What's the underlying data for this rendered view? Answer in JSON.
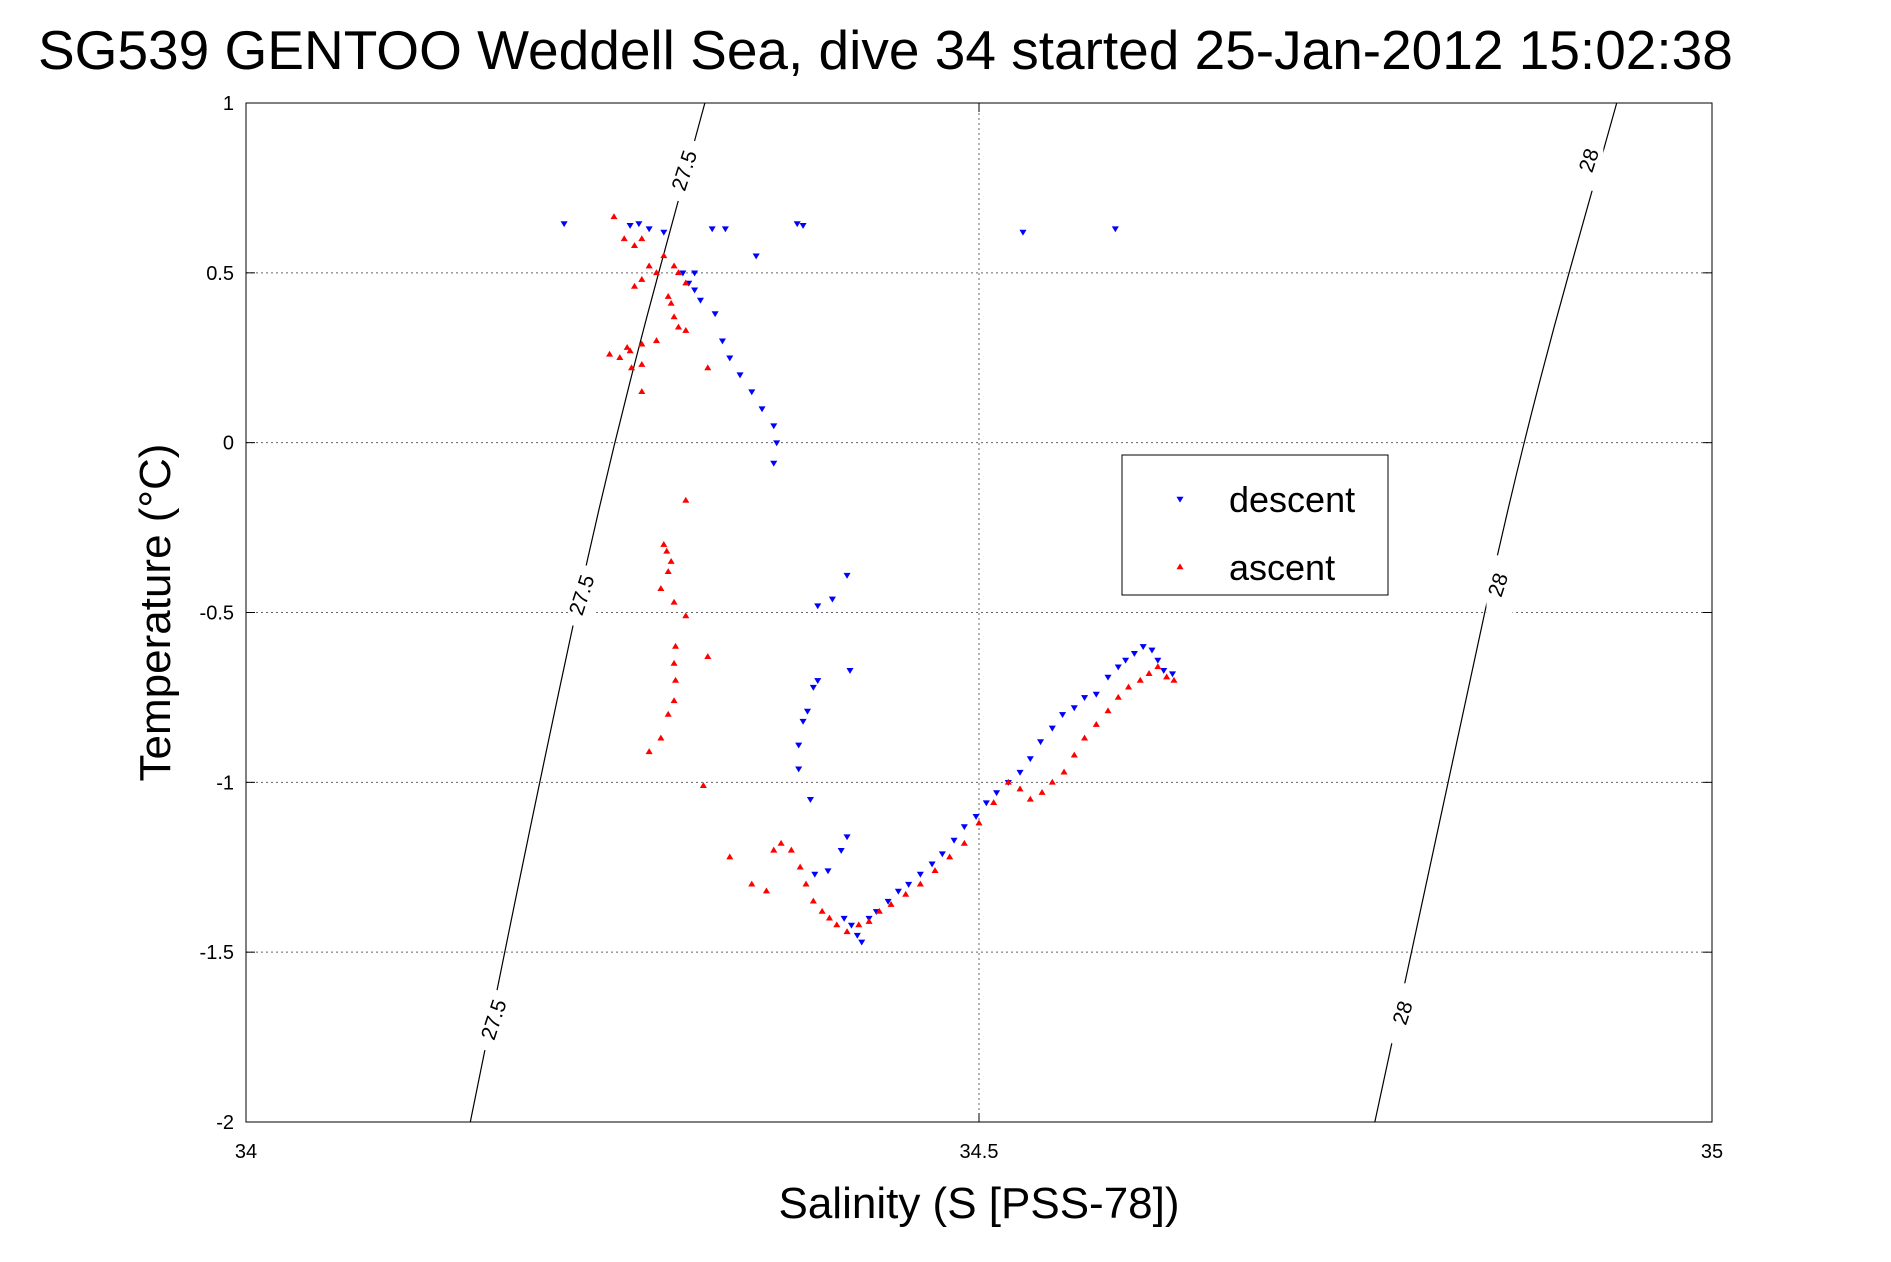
{
  "chart_data": {
    "type": "scatter",
    "title": "SG539 GENTOO Weddell Sea, dive 34 started 25-Jan-2012 15:02:38",
    "xlabel": "Salinity (S [PSS-78])",
    "ylabel": "Temperature (°C)",
    "xlim": [
      34,
      35
    ],
    "ylim": [
      -2,
      1
    ],
    "x_ticks": [
      "34",
      "34.5",
      "35"
    ],
    "y_ticks": [
      "1",
      "0.5",
      "0",
      "-0.5",
      "-1",
      "-1.5",
      "-2"
    ],
    "grid": true,
    "legend_position": "center-right",
    "series": [
      {
        "name": "descent",
        "color": "#0000ff",
        "marker": "triangle-down",
        "points": [
          [
            34.217,
            0.645
          ],
          [
            34.262,
            0.64
          ],
          [
            34.268,
            0.645
          ],
          [
            34.275,
            0.63
          ],
          [
            34.285,
            0.62
          ],
          [
            34.298,
            0.5
          ],
          [
            34.302,
            0.47
          ],
          [
            34.306,
            0.5
          ],
          [
            34.318,
            0.63
          ],
          [
            34.327,
            0.63
          ],
          [
            34.348,
            0.55
          ],
          [
            34.376,
            0.645
          ],
          [
            34.38,
            0.64
          ],
          [
            34.53,
            0.62
          ],
          [
            34.593,
            0.63
          ],
          [
            34.306,
            0.45
          ],
          [
            34.31,
            0.42
          ],
          [
            34.32,
            0.38
          ],
          [
            34.325,
            0.3
          ],
          [
            34.33,
            0.25
          ],
          [
            34.337,
            0.2
          ],
          [
            34.345,
            0.15
          ],
          [
            34.352,
            0.1
          ],
          [
            34.36,
            0.05
          ],
          [
            34.362,
            0.0
          ],
          [
            34.36,
            -0.06
          ],
          [
            34.41,
            -0.39
          ],
          [
            34.4,
            -0.46
          ],
          [
            34.39,
            -0.48
          ],
          [
            34.412,
            -0.67
          ],
          [
            34.39,
            -0.7
          ],
          [
            34.387,
            -0.72
          ],
          [
            34.383,
            -0.79
          ],
          [
            34.38,
            -0.82
          ],
          [
            34.377,
            -0.89
          ],
          [
            34.377,
            -0.96
          ],
          [
            34.385,
            -1.05
          ],
          [
            34.41,
            -1.16
          ],
          [
            34.406,
            -1.2
          ],
          [
            34.397,
            -1.26
          ],
          [
            34.388,
            -1.27
          ],
          [
            34.408,
            -1.4
          ],
          [
            34.413,
            -1.42
          ],
          [
            34.417,
            -1.45
          ],
          [
            34.42,
            -1.47
          ],
          [
            34.425,
            -1.4
          ],
          [
            34.43,
            -1.38
          ],
          [
            34.438,
            -1.35
          ],
          [
            34.445,
            -1.32
          ],
          [
            34.452,
            -1.3
          ],
          [
            34.46,
            -1.27
          ],
          [
            34.468,
            -1.24
          ],
          [
            34.475,
            -1.21
          ],
          [
            34.483,
            -1.17
          ],
          [
            34.49,
            -1.13
          ],
          [
            34.498,
            -1.1
          ],
          [
            34.505,
            -1.06
          ],
          [
            34.512,
            -1.03
          ],
          [
            34.52,
            -1.0
          ],
          [
            34.528,
            -0.97
          ],
          [
            34.535,
            -0.93
          ],
          [
            34.542,
            -0.88
          ],
          [
            34.55,
            -0.84
          ],
          [
            34.557,
            -0.8
          ],
          [
            34.565,
            -0.78
          ],
          [
            34.572,
            -0.75
          ],
          [
            34.58,
            -0.74
          ],
          [
            34.588,
            -0.69
          ],
          [
            34.595,
            -0.66
          ],
          [
            34.6,
            -0.64
          ],
          [
            34.606,
            -0.62
          ],
          [
            34.612,
            -0.6
          ],
          [
            34.618,
            -0.61
          ],
          [
            34.622,
            -0.64
          ],
          [
            34.626,
            -0.67
          ],
          [
            34.632,
            -0.68
          ]
        ]
      },
      {
        "name": "ascent",
        "color": "#ff0000",
        "marker": "triangle-up",
        "points": [
          [
            34.251,
            0.665
          ],
          [
            34.258,
            0.6
          ],
          [
            34.265,
            0.58
          ],
          [
            34.27,
            0.6
          ],
          [
            34.275,
            0.52
          ],
          [
            34.28,
            0.5
          ],
          [
            34.265,
            0.46
          ],
          [
            34.27,
            0.48
          ],
          [
            34.285,
            0.55
          ],
          [
            34.292,
            0.52
          ],
          [
            34.295,
            0.5
          ],
          [
            34.3,
            0.47
          ],
          [
            34.288,
            0.43
          ],
          [
            34.29,
            0.41
          ],
          [
            34.292,
            0.37
          ],
          [
            34.295,
            0.34
          ],
          [
            34.3,
            0.33
          ],
          [
            34.28,
            0.3
          ],
          [
            34.27,
            0.29
          ],
          [
            34.262,
            0.27
          ],
          [
            34.255,
            0.25
          ],
          [
            34.26,
            0.28
          ],
          [
            34.248,
            0.26
          ],
          [
            34.27,
            0.23
          ],
          [
            34.263,
            0.22
          ],
          [
            34.27,
            0.15
          ],
          [
            34.315,
            0.22
          ],
          [
            34.3,
            -0.17
          ],
          [
            34.285,
            -0.3
          ],
          [
            34.287,
            -0.32
          ],
          [
            34.29,
            -0.35
          ],
          [
            34.288,
            -0.38
          ],
          [
            34.283,
            -0.43
          ],
          [
            34.292,
            -0.47
          ],
          [
            34.3,
            -0.51
          ],
          [
            34.293,
            -0.6
          ],
          [
            34.292,
            -0.65
          ],
          [
            34.293,
            -0.7
          ],
          [
            34.292,
            -0.76
          ],
          [
            34.288,
            -0.8
          ],
          [
            34.283,
            -0.87
          ],
          [
            34.275,
            -0.91
          ],
          [
            34.315,
            -0.63
          ],
          [
            34.312,
            -1.01
          ],
          [
            34.33,
            -1.22
          ],
          [
            34.345,
            -1.3
          ],
          [
            34.355,
            -1.32
          ],
          [
            34.36,
            -1.2
          ],
          [
            34.365,
            -1.18
          ],
          [
            34.372,
            -1.2
          ],
          [
            34.378,
            -1.25
          ],
          [
            34.382,
            -1.3
          ],
          [
            34.387,
            -1.35
          ],
          [
            34.393,
            -1.38
          ],
          [
            34.398,
            -1.4
          ],
          [
            34.403,
            -1.42
          ],
          [
            34.41,
            -1.44
          ],
          [
            34.418,
            -1.42
          ],
          [
            34.425,
            -1.41
          ],
          [
            34.432,
            -1.38
          ],
          [
            34.44,
            -1.36
          ],
          [
            34.45,
            -1.33
          ],
          [
            34.46,
            -1.3
          ],
          [
            34.47,
            -1.26
          ],
          [
            34.48,
            -1.22
          ],
          [
            34.49,
            -1.18
          ],
          [
            34.5,
            -1.12
          ],
          [
            34.51,
            -1.06
          ],
          [
            34.52,
            -1.0
          ],
          [
            34.528,
            -1.02
          ],
          [
            34.535,
            -1.05
          ],
          [
            34.543,
            -1.03
          ],
          [
            34.55,
            -1.0
          ],
          [
            34.558,
            -0.97
          ],
          [
            34.565,
            -0.92
          ],
          [
            34.572,
            -0.87
          ],
          [
            34.58,
            -0.83
          ],
          [
            34.588,
            -0.79
          ],
          [
            34.595,
            -0.75
          ],
          [
            34.602,
            -0.72
          ],
          [
            34.61,
            -0.7
          ],
          [
            34.616,
            -0.68
          ],
          [
            34.622,
            -0.66
          ],
          [
            34.628,
            -0.69
          ],
          [
            34.633,
            -0.7
          ]
        ]
      }
    ],
    "contours": [
      {
        "level": "27.5",
        "points": [
          [
            34.153,
            -2.0
          ],
          [
            34.2,
            -1.0
          ],
          [
            34.25,
            0.0
          ],
          [
            34.313,
            1.0
          ]
        ],
        "labels": [
          [
            34.17,
            -1.7
          ],
          [
            34.23,
            -0.45
          ],
          [
            34.3,
            0.8
          ]
        ]
      },
      {
        "level": "28",
        "points": [
          [
            34.77,
            -2.0
          ],
          [
            34.82,
            -1.0
          ],
          [
            34.87,
            0.0
          ],
          [
            34.935,
            1.0
          ]
        ],
        "labels": [
          [
            34.79,
            -1.68
          ],
          [
            34.855,
            -0.42
          ],
          [
            34.917,
            0.83
          ]
        ]
      }
    ]
  }
}
